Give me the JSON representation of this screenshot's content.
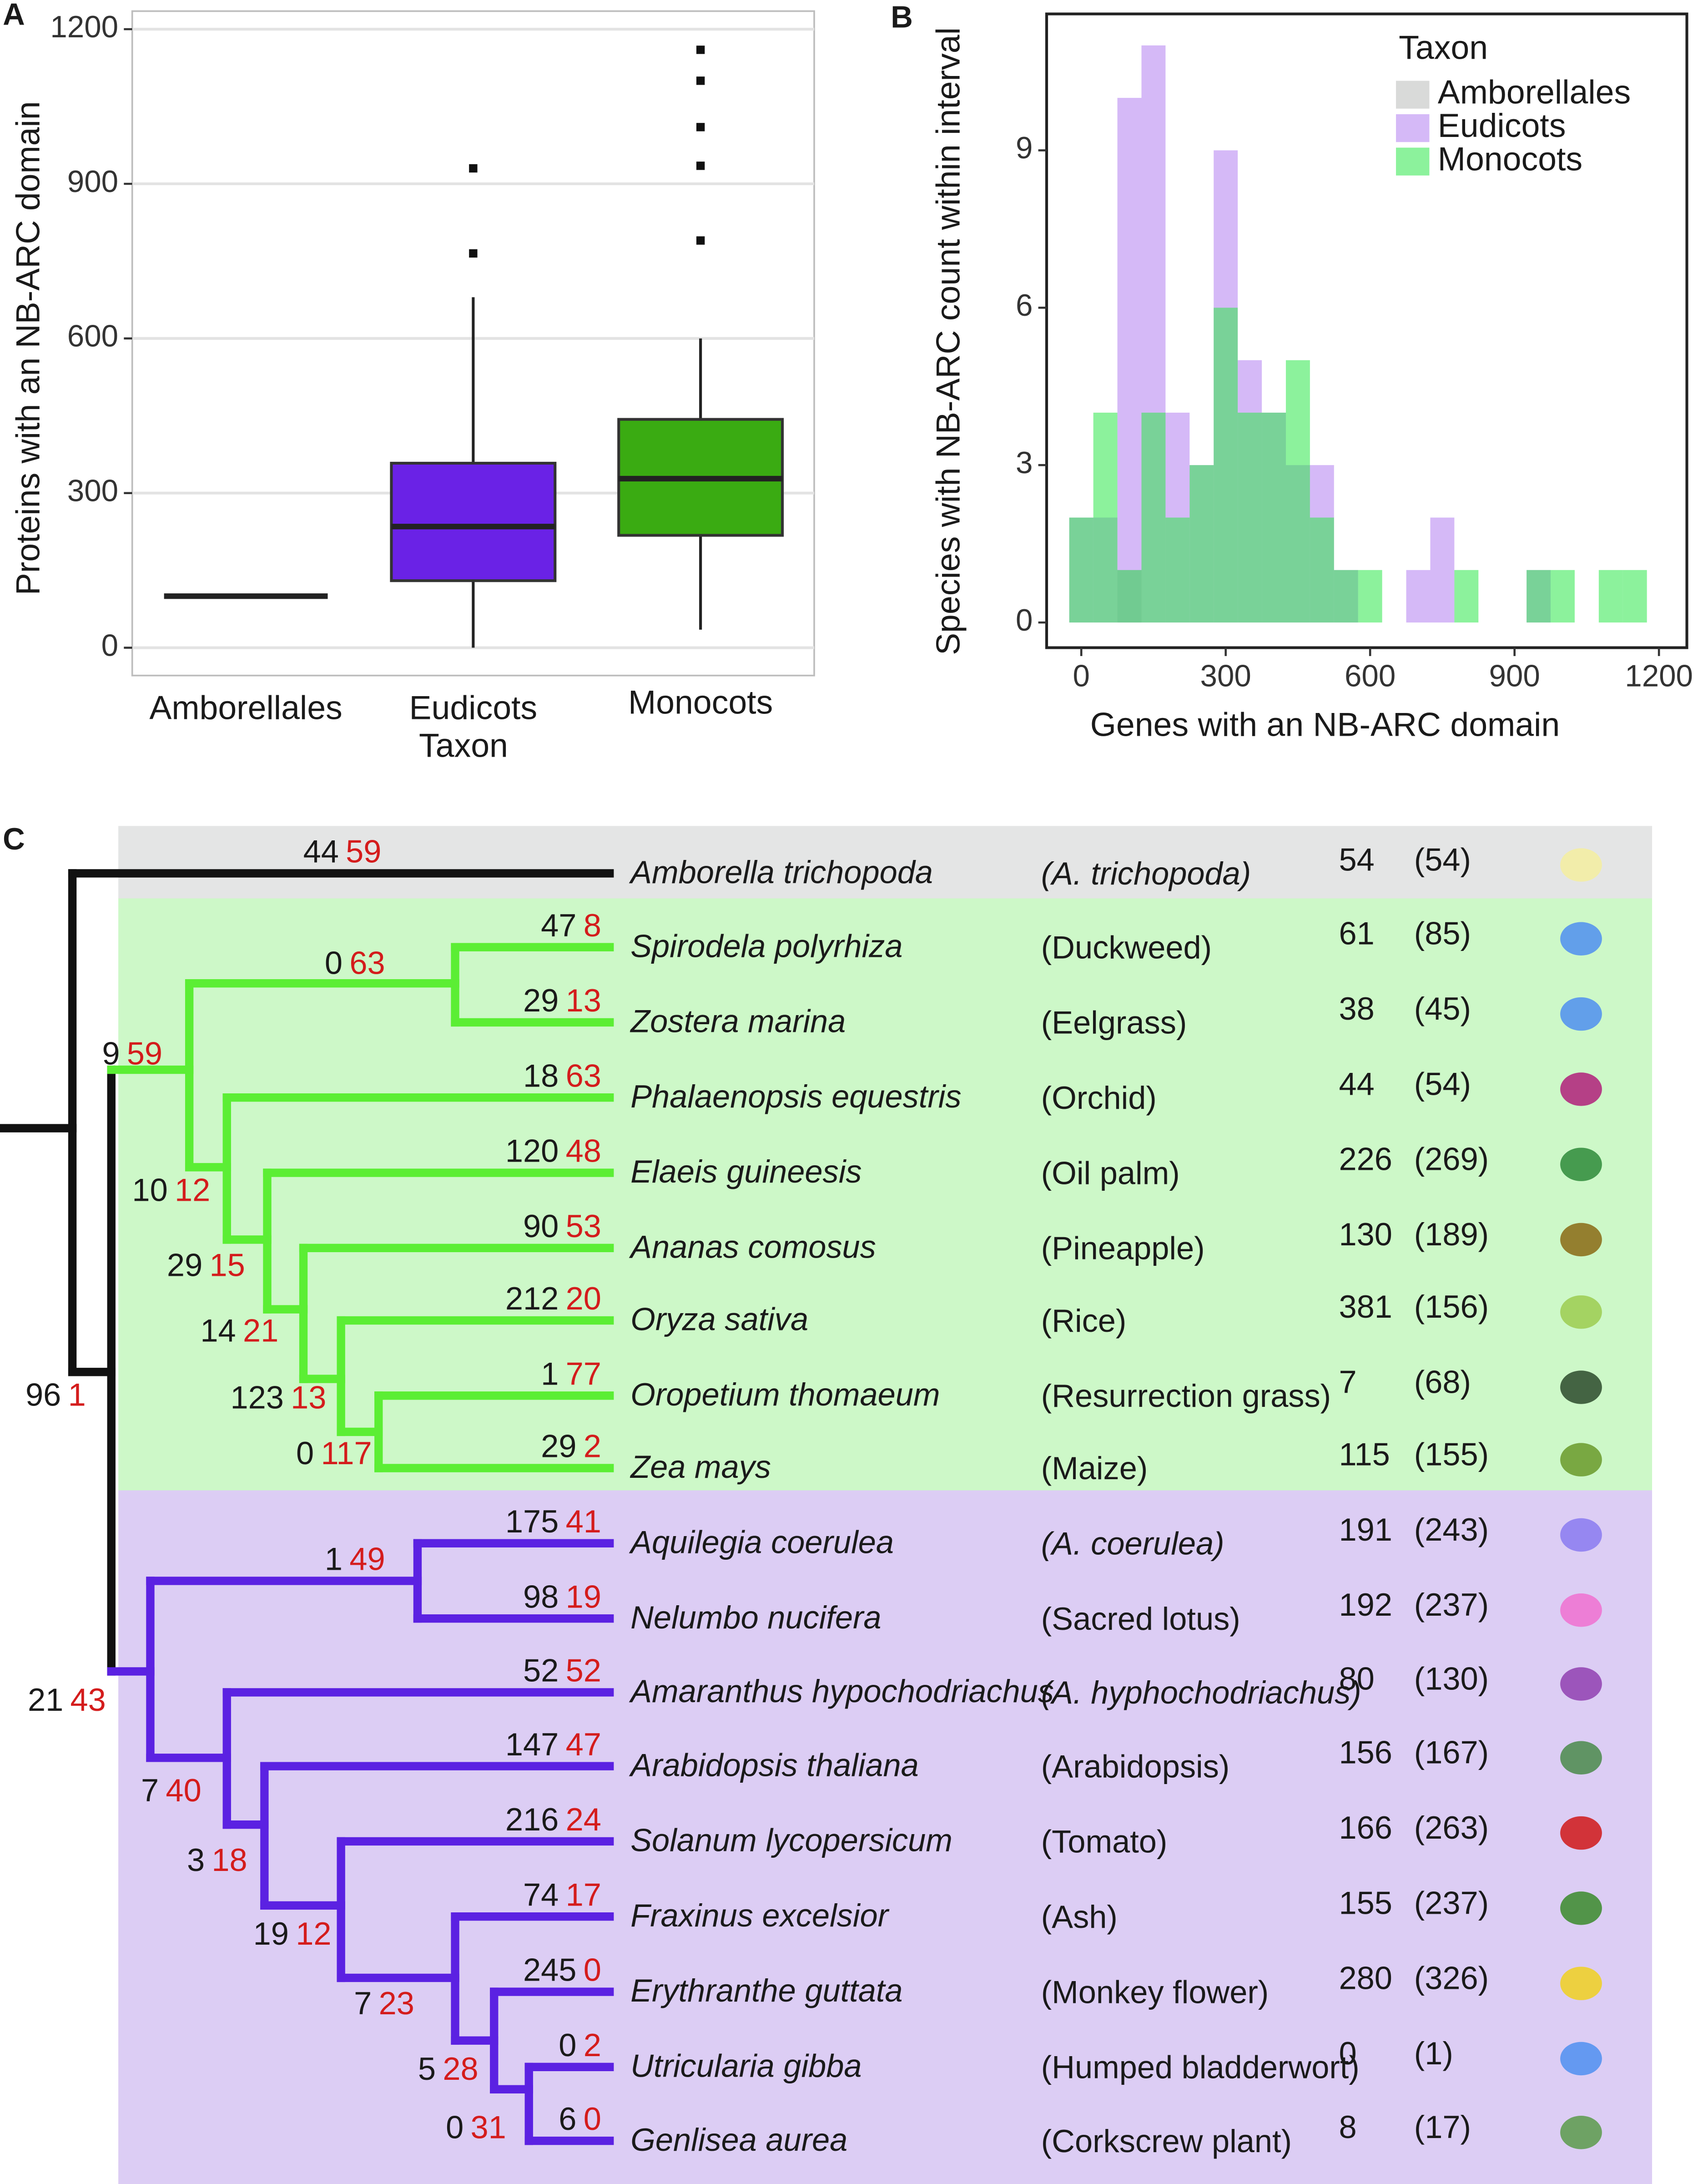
{
  "chart_data": [
    {
      "type": "box",
      "panel_label": "A",
      "xlabel": "Taxon",
      "ylabel": "Proteins with an NB-ARC domain",
      "categories": [
        "Amborellales",
        "Eudicots",
        "Monocots"
      ],
      "boxes": [
        {
          "min": 100,
          "q1": 100,
          "median": 100,
          "q3": 100,
          "max": 100,
          "outliers": [],
          "color": "#222222"
        },
        {
          "min": 0,
          "q1": 130,
          "median": 235,
          "q3": 358,
          "max": 680,
          "outliers": [
            765,
            930
          ],
          "color": "#6a22e6"
        },
        {
          "min": 35,
          "q1": 218,
          "median": 328,
          "q3": 443,
          "max": 600,
          "outliers": [
            790,
            935,
            1010,
            1100,
            1160
          ],
          "color": "#3aab12"
        }
      ],
      "ylim": [
        -54,
        1235
      ],
      "yticks": [
        0,
        300,
        600,
        900,
        1200
      ],
      "grid": true
    },
    {
      "type": "histogram",
      "panel_label": "B",
      "xlabel": "Genes with an NB-ARC domain",
      "ylabel": "Species with NB-ARC count within interval",
      "legend_title": "Taxon",
      "bins": [
        -25,
        25,
        75,
        125,
        175,
        225,
        275,
        325,
        375,
        425,
        475,
        525,
        575,
        625,
        675,
        725,
        775,
        825,
        875,
        925,
        975,
        1025,
        1075,
        1125,
        1175
      ],
      "series": [
        {
          "name": "Amborellales",
          "color": "#b9bcb9",
          "values": [
            0,
            0,
            1,
            0,
            0,
            0,
            0,
            0,
            0,
            0,
            0,
            0,
            0,
            0,
            0,
            0,
            0,
            0,
            0,
            0,
            0,
            0,
            0,
            0
          ]
        },
        {
          "name": "Eudicots",
          "color": "#b27ff0",
          "values": [
            2,
            2,
            10,
            11,
            4,
            3,
            9,
            5,
            4,
            3,
            3,
            1,
            0,
            0,
            1,
            2,
            0,
            0,
            0,
            1,
            0,
            0,
            0,
            0
          ]
        },
        {
          "name": "Monocots",
          "color": "#2ee84a",
          "values": [
            2,
            4,
            1,
            4,
            2,
            3,
            6,
            4,
            4,
            5,
            2,
            1,
            1,
            0,
            0,
            0,
            1,
            0,
            0,
            1,
            1,
            0,
            1,
            1
          ]
        }
      ],
      "xlim": [
        -72,
        1258
      ],
      "ylim": [
        -0.48,
        11.6
      ],
      "xticks": [
        0,
        300,
        600,
        900,
        1200
      ],
      "yticks": [
        0,
        3,
        6,
        9
      ]
    }
  ],
  "tree": {
    "panel_label": "C",
    "species": [
      {
        "name": "Amborella trichopoda",
        "common": "(A. trichopoda)",
        "common_italic": true,
        "count": 54,
        "paren": "(54)",
        "gain": 44,
        "loss": 59
      },
      {
        "name": "Spirodela polyrhiza",
        "common": "(Duckweed)",
        "count": 61,
        "paren": "(85)",
        "gain": 47,
        "loss": 8
      },
      {
        "name": "Zostera marina",
        "common": "(Eelgrass)",
        "count": 38,
        "paren": "(45)",
        "gain": 29,
        "loss": 13
      },
      {
        "name": "Phalaenopsis equestris",
        "common": "(Orchid)",
        "count": 44,
        "paren": "(54)",
        "gain": 18,
        "loss": 63
      },
      {
        "name": "Elaeis guineesis",
        "common": "(Oil palm)",
        "count": 226,
        "paren": "(269)",
        "gain": 120,
        "loss": 48
      },
      {
        "name": "Ananas comosus",
        "common": "(Pineapple)",
        "count": 130,
        "paren": "(189)",
        "gain": 90,
        "loss": 53
      },
      {
        "name": "Oryza sativa",
        "common": "(Rice)",
        "count": 381,
        "paren": "(156)",
        "gain": 212,
        "loss": 20
      },
      {
        "name": "Oropetium thomaeum",
        "common": "(Resurrection grass)",
        "count": 7,
        "paren": "(68)",
        "gain": 1,
        "loss": 77
      },
      {
        "name": "Zea mays",
        "common": "(Maize)",
        "count": 115,
        "paren": "(155)",
        "gain": 29,
        "loss": 2
      },
      {
        "name": "Aquilegia coerulea",
        "common": "(A. coerulea)",
        "common_italic": true,
        "count": 191,
        "paren": "(243)",
        "gain": 175,
        "loss": 41
      },
      {
        "name": "Nelumbo nucifera",
        "common": "(Sacred lotus)",
        "count": 192,
        "paren": "(237)",
        "gain": 98,
        "loss": 19
      },
      {
        "name": "Amaranthus hypochodriachus",
        "common": "(A. hyphochodriachus)",
        "common_italic": true,
        "count": 80,
        "paren": "(130)",
        "gain": 52,
        "loss": 52
      },
      {
        "name": "Arabidopsis thaliana",
        "common": "(Arabidopsis)",
        "count": 156,
        "paren": "(167)",
        "gain": 147,
        "loss": 47
      },
      {
        "name": "Solanum lycopersicum",
        "common": "(Tomato)",
        "count": 166,
        "paren": "(263)",
        "gain": 216,
        "loss": 24
      },
      {
        "name": "Fraxinus excelsior",
        "common": "(Ash)",
        "count": 155,
        "paren": "(237)",
        "gain": 74,
        "loss": 17
      },
      {
        "name": "Erythranthe guttata",
        "common": "(Monkey flower)",
        "count": 280,
        "paren": "(326)",
        "gain": 245,
        "loss": 0
      },
      {
        "name": "Utricularia gibba",
        "common": "(Humped bladderwort)",
        "count": 0,
        "paren": "(1)",
        "gain": 0,
        "loss": 2
      },
      {
        "name": "Genlisea aurea",
        "common": "(Corkscrew plant)",
        "count": 8,
        "paren": "(17)",
        "gain": 6,
        "loss": 0
      }
    ],
    "nodes": [
      {
        "gain": 96,
        "loss": 1
      },
      {
        "gain": 9,
        "loss": 59
      },
      {
        "gain": 0,
        "loss": 63
      },
      {
        "gain": 10,
        "loss": 12
      },
      {
        "gain": 29,
        "loss": 15
      },
      {
        "gain": 14,
        "loss": 21
      },
      {
        "gain": 123,
        "loss": 13
      },
      {
        "gain": 0,
        "loss": 117
      },
      {
        "gain": 21,
        "loss": 43
      },
      {
        "gain": 1,
        "loss": 49
      },
      {
        "gain": 7,
        "loss": 40
      },
      {
        "gain": 3,
        "loss": 18
      },
      {
        "gain": 19,
        "loss": 12
      },
      {
        "gain": 7,
        "loss": 23
      },
      {
        "gain": 5,
        "loss": 28
      },
      {
        "gain": 0,
        "loss": 31
      }
    ]
  }
}
